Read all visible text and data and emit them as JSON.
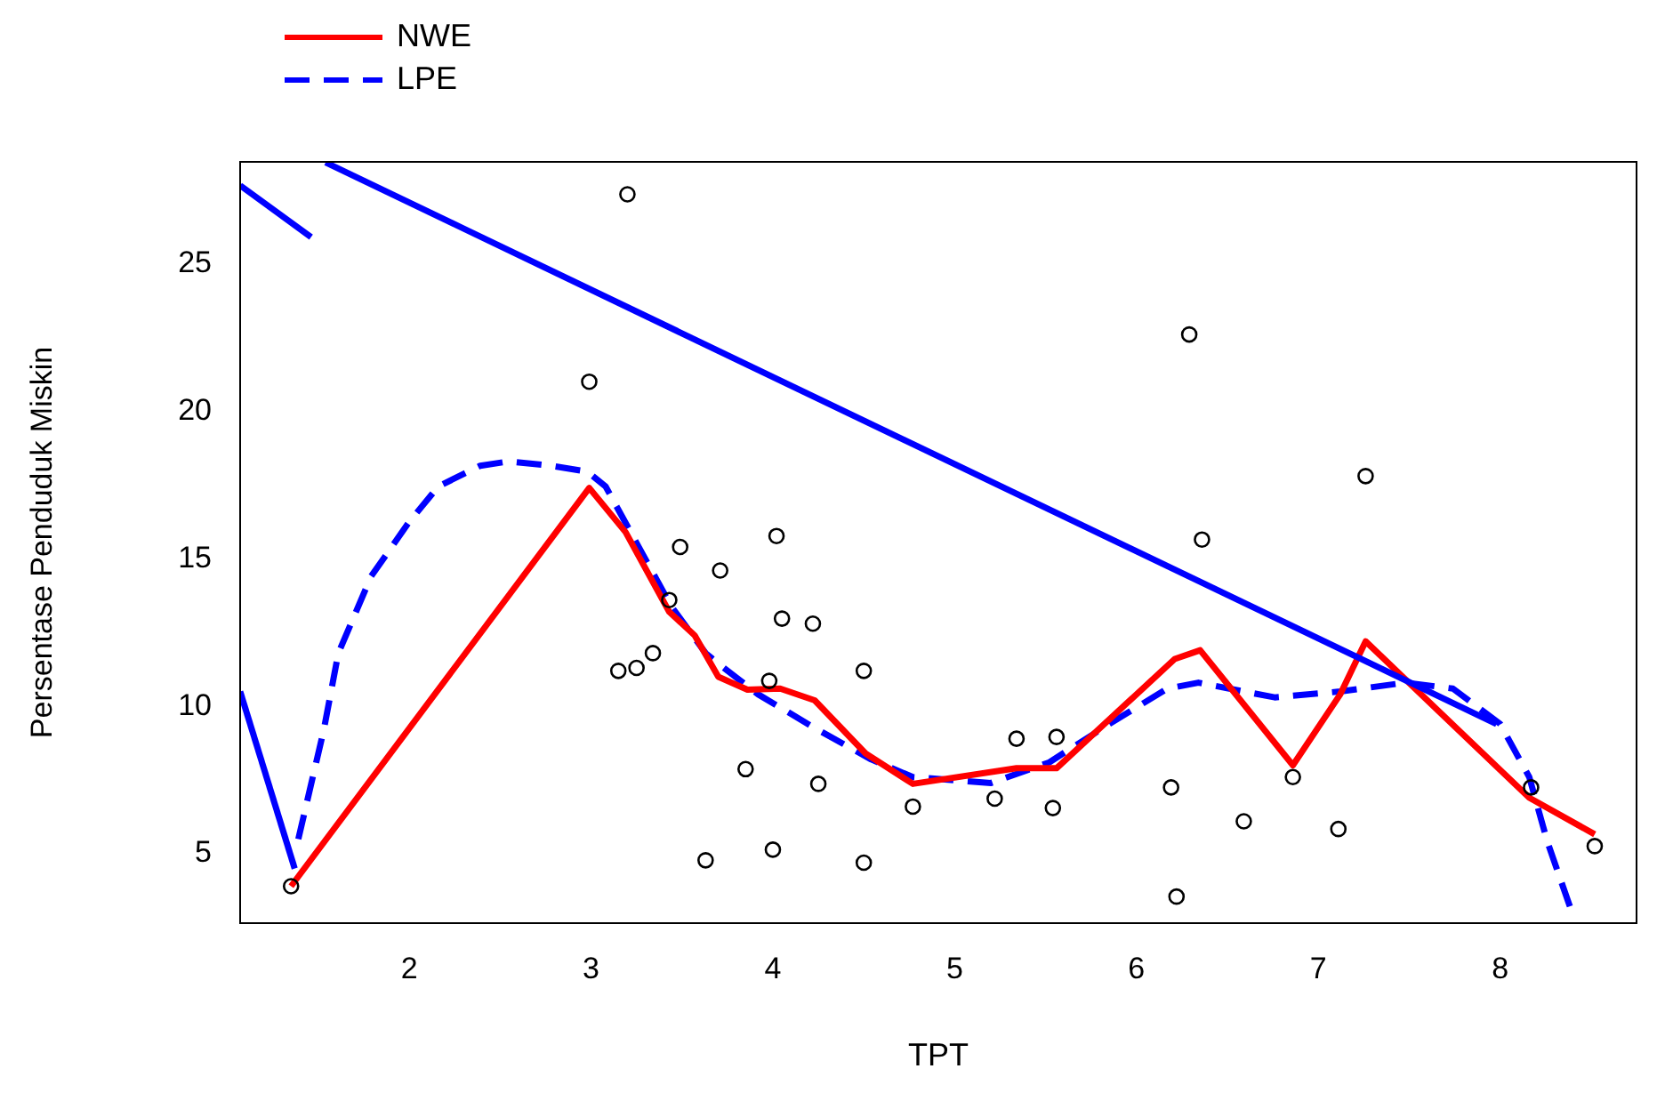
{
  "chart_data": {
    "type": "line",
    "xlabel": "TPT",
    "ylabel": "Persentase Penduduk Miskin",
    "xlim": [
      1.07,
      8.75
    ],
    "ylim": [
      2.65,
      28.45
    ],
    "xticks": [
      2,
      3,
      4,
      5,
      6,
      7,
      8
    ],
    "yticks": [
      5,
      10,
      15,
      20,
      25
    ],
    "grid": false,
    "legend": "top left",
    "series": [
      {
        "type": "scatter",
        "color": "#000000",
        "marker": "circle",
        "x": [
          1.35,
          3.2,
          2.99,
          3.49,
          3.43,
          3.15,
          3.25,
          3.34,
          3.63,
          4.02,
          3.71,
          4.05,
          4.22,
          4.5,
          3.98,
          3.85,
          4.25,
          4.77,
          5.34,
          5.56,
          5.22,
          5.54,
          4.0,
          4.5,
          6.22,
          6.29,
          7.26,
          6.36,
          6.19,
          6.86,
          6.59,
          7.11,
          8.17,
          8.52
        ],
        "values": [
          3.9,
          27.35,
          21.0,
          15.4,
          13.6,
          11.2,
          11.3,
          11.8,
          4.78,
          15.77,
          14.6,
          12.97,
          12.8,
          11.2,
          10.86,
          7.87,
          7.37,
          6.6,
          8.9,
          8.96,
          6.87,
          6.55,
          5.14,
          4.7,
          3.55,
          22.6,
          17.8,
          15.65,
          7.25,
          7.6,
          6.1,
          5.84,
          7.25,
          5.26
        ]
      },
      {
        "color": "#0000ff",
        "line_style": "solid",
        "x": [
          1.07,
          1.37
        ],
        "values": [
          10.5,
          4.5
        ]
      },
      {
        "color": "#0000ff",
        "line_style": "solid",
        "x": [
          1.07,
          1.46
        ],
        "values": [
          27.65,
          25.9
        ]
      },
      {
        "color": "#0000ff",
        "line_style": "solid",
        "x": [
          1.54,
          7.98
        ],
        "values": [
          28.43,
          9.4
        ]
      },
      {
        "name": "NWE",
        "color": "#ff0000",
        "line_style": "solid",
        "x": [
          1.35,
          2.99,
          3.19,
          3.43,
          3.57,
          3.7,
          3.86,
          4.04,
          4.23,
          4.51,
          4.77,
          5.34,
          5.56,
          6.21,
          6.35,
          6.86,
          7.12,
          7.26,
          8.16,
          8.52
        ],
        "values": [
          3.9,
          17.4,
          15.9,
          13.2,
          12.4,
          11.0,
          10.56,
          10.6,
          10.2,
          8.4,
          7.37,
          7.9,
          7.9,
          11.6,
          11.9,
          8.0,
          10.4,
          12.2,
          6.9,
          5.66
        ]
      },
      {
        "name": "LPE",
        "color": "#0000ff",
        "line_style": "dashed",
        "x": [
          1.39,
          1.53,
          1.61,
          1.79,
          2.0,
          2.16,
          2.39,
          2.55,
          2.78,
          2.98,
          3.08,
          3.24,
          3.44,
          3.63,
          3.73,
          3.92,
          4.22,
          4.54,
          4.77,
          5.2,
          5.52,
          5.85,
          6.17,
          6.34,
          6.76,
          7.12,
          7.48,
          7.74,
          8.0,
          8.16,
          8.26,
          8.39
        ],
        "values": [
          5.5,
          9.2,
          11.8,
          14.4,
          16.25,
          17.45,
          18.15,
          18.3,
          18.15,
          17.95,
          17.45,
          15.65,
          13.4,
          11.8,
          11.3,
          10.4,
          9.3,
          8.2,
          7.6,
          7.4,
          8.1,
          9.4,
          10.6,
          10.8,
          10.3,
          10.5,
          10.8,
          10.6,
          9.4,
          7.6,
          5.4,
          3.1
        ]
      }
    ]
  }
}
